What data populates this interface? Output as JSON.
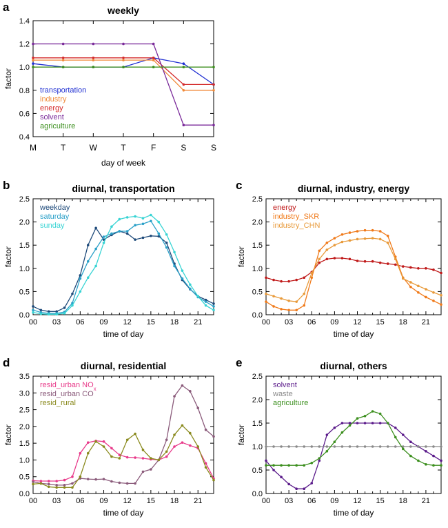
{
  "chart_data": [
    {
      "id": "a",
      "panel_label": "a",
      "type": "line",
      "title": "weekly",
      "xlabel": "day of week",
      "ylabel": "factor",
      "x_tick_labels": [
        "M",
        "T",
        "W",
        "T",
        "F",
        "S",
        "S"
      ],
      "ylim": [
        0.4,
        1.4
      ],
      "y_ticks": [
        "0.4",
        "0.6",
        "0.8",
        "1.0",
        "1.2",
        "1.4"
      ],
      "legend_position": "lower-left",
      "series": [
        {
          "name": "transportation",
          "color": "#1f2fd2",
          "values": [
            1.03,
            1.0,
            1.0,
            1.0,
            1.08,
            1.03,
            0.85
          ]
        },
        {
          "name": "industry",
          "color": "#f08a3a",
          "values": [
            1.06,
            1.06,
            1.06,
            1.06,
            1.06,
            0.8,
            0.8
          ]
        },
        {
          "name": "energy",
          "color": "#d42a2a",
          "values": [
            1.08,
            1.08,
            1.08,
            1.08,
            1.08,
            0.85,
            0.85
          ]
        },
        {
          "name": "solvent",
          "color": "#7a2a9a",
          "values": [
            1.2,
            1.2,
            1.2,
            1.2,
            1.2,
            0.5,
            0.5
          ]
        },
        {
          "name": "agriculture",
          "color": "#3c8f1e",
          "values": [
            1.0,
            1.0,
            1.0,
            1.0,
            1.0,
            1.0,
            1.0
          ]
        }
      ]
    },
    {
      "id": "b",
      "panel_label": "b",
      "type": "line",
      "title": "diurnal, transportation",
      "xlabel": "time of day",
      "ylabel": "factor",
      "xlim": [
        0,
        23
      ],
      "x_ticks": [
        0,
        3,
        6,
        9,
        12,
        15,
        18,
        21
      ],
      "x_tick_labels": [
        "00",
        "03",
        "06",
        "09",
        "12",
        "15",
        "18",
        "21"
      ],
      "ylim": [
        0,
        2.5
      ],
      "y_ticks": [
        "0.0",
        "0.5",
        "1.0",
        "1.5",
        "2.0",
        "2.5"
      ],
      "legend_position": "top-left",
      "series": [
        {
          "name": "weekday",
          "color": "#1e4a7a",
          "values": [
            0.18,
            0.1,
            0.07,
            0.07,
            0.15,
            0.45,
            0.85,
            1.5,
            1.87,
            1.62,
            1.72,
            1.8,
            1.75,
            1.62,
            1.66,
            1.7,
            1.69,
            1.55,
            1.1,
            0.75,
            0.55,
            0.4,
            0.32,
            0.24
          ]
        },
        {
          "name": "saturday",
          "color": "#2aa0c8",
          "values": [
            0.1,
            0.05,
            0.03,
            0.03,
            0.06,
            0.25,
            0.78,
            1.15,
            1.42,
            1.68,
            1.75,
            1.8,
            1.8,
            1.93,
            1.96,
            2.02,
            1.75,
            1.45,
            1.05,
            0.78,
            0.56,
            0.38,
            0.28,
            0.18
          ]
        },
        {
          "name": "sunday",
          "color": "#38d4d4",
          "values": [
            0.05,
            0.02,
            0.01,
            0.01,
            0.03,
            0.2,
            0.5,
            0.8,
            1.05,
            1.55,
            1.9,
            2.06,
            2.1,
            2.12,
            2.08,
            2.15,
            2.0,
            1.73,
            1.35,
            0.95,
            0.65,
            0.4,
            0.2,
            0.1
          ]
        }
      ]
    },
    {
      "id": "c",
      "panel_label": "c",
      "type": "line",
      "title": "diurnal, industry, energy",
      "xlabel": "time of day",
      "ylabel": "factor",
      "xlim": [
        0,
        23
      ],
      "x_ticks": [
        0,
        3,
        6,
        9,
        12,
        15,
        18,
        21
      ],
      "x_tick_labels": [
        "00",
        "03",
        "06",
        "09",
        "12",
        "15",
        "18",
        "21"
      ],
      "ylim": [
        0,
        2.5
      ],
      "y_ticks": [
        "0.0",
        "0.5",
        "1.0",
        "1.5",
        "2.0",
        "2.5"
      ],
      "legend_position": "top-left",
      "series": [
        {
          "name": "energy",
          "color": "#c01a1a",
          "values": [
            0.8,
            0.75,
            0.72,
            0.72,
            0.75,
            0.8,
            0.92,
            1.12,
            1.2,
            1.22,
            1.22,
            1.2,
            1.16,
            1.15,
            1.15,
            1.12,
            1.1,
            1.08,
            1.04,
            1.02,
            1.0,
            1.0,
            0.97,
            0.9
          ]
        },
        {
          "name": "industry_SKR",
          "color": "#f07a1a",
          "values": [
            0.28,
            0.18,
            0.12,
            0.1,
            0.1,
            0.2,
            0.8,
            1.38,
            1.55,
            1.65,
            1.73,
            1.77,
            1.8,
            1.82,
            1.82,
            1.8,
            1.7,
            1.25,
            0.8,
            0.6,
            0.48,
            0.38,
            0.3,
            0.22
          ]
        },
        {
          "name": "industry_CHN",
          "color": "#e89a3a",
          "values": [
            0.45,
            0.4,
            0.35,
            0.3,
            0.28,
            0.45,
            0.9,
            1.2,
            1.4,
            1.5,
            1.57,
            1.6,
            1.63,
            1.64,
            1.65,
            1.63,
            1.55,
            1.2,
            0.78,
            0.7,
            0.62,
            0.55,
            0.48,
            0.42
          ]
        }
      ]
    },
    {
      "id": "d",
      "panel_label": "d",
      "type": "line",
      "title": "diurnal, residential",
      "xlabel": "time of day",
      "ylabel": "factor",
      "xlim": [
        0,
        23
      ],
      "x_ticks": [
        0,
        3,
        6,
        9,
        12,
        15,
        18,
        21
      ],
      "x_tick_labels": [
        "00",
        "03",
        "06",
        "09",
        "12",
        "15",
        "18",
        "21"
      ],
      "ylim": [
        0,
        3.5
      ],
      "y_ticks": [
        "0.0",
        "0.5",
        "1.0",
        "1.5",
        "2.0",
        "2.5",
        "3.0",
        "3.5"
      ],
      "legend_position": "top-left",
      "series": [
        {
          "name": "resid_urban NOx",
          "color": "#e83a8a",
          "values": [
            0.38,
            0.37,
            0.37,
            0.37,
            0.4,
            0.5,
            1.2,
            1.52,
            1.57,
            1.55,
            1.35,
            1.15,
            1.08,
            1.07,
            1.05,
            1.02,
            1.0,
            1.1,
            1.4,
            1.52,
            1.43,
            1.35,
            0.9,
            0.45
          ]
        },
        {
          "name": "resid_urban CO",
          "color": "#8a5a7a",
          "values": [
            0.35,
            0.3,
            0.28,
            0.25,
            0.25,
            0.3,
            0.45,
            0.43,
            0.42,
            0.43,
            0.36,
            0.32,
            0.3,
            0.3,
            0.65,
            0.72,
            1.0,
            1.6,
            2.9,
            3.22,
            3.05,
            2.55,
            1.9,
            1.7
          ]
        },
        {
          "name": "resid_rural",
          "color": "#8a8a1e",
          "values": [
            0.28,
            0.3,
            0.2,
            0.18,
            0.18,
            0.18,
            0.5,
            1.2,
            1.55,
            1.4,
            1.1,
            1.05,
            1.6,
            1.78,
            1.3,
            1.05,
            1.0,
            1.25,
            1.75,
            2.03,
            1.8,
            1.4,
            0.78,
            0.4
          ]
        }
      ]
    },
    {
      "id": "e",
      "panel_label": "e",
      "type": "line",
      "title": "diurnal, others",
      "xlabel": "time of day",
      "ylabel": "factor",
      "xlim": [
        0,
        23
      ],
      "x_ticks": [
        0,
        3,
        6,
        9,
        12,
        15,
        18,
        21
      ],
      "x_tick_labels": [
        "00",
        "03",
        "06",
        "09",
        "12",
        "15",
        "18",
        "21"
      ],
      "ylim": [
        0,
        2.5
      ],
      "y_ticks": [
        "0.0",
        "0.5",
        "1.0",
        "1.5",
        "2.0",
        "2.5"
      ],
      "legend_position": "top-left",
      "series": [
        {
          "name": "solvent",
          "color": "#5a1a8a",
          "values": [
            0.7,
            0.5,
            0.35,
            0.2,
            0.1,
            0.1,
            0.22,
            0.7,
            1.25,
            1.4,
            1.5,
            1.5,
            1.5,
            1.5,
            1.5,
            1.5,
            1.5,
            1.4,
            1.25,
            1.1,
            1.0,
            0.9,
            0.8,
            0.7
          ]
        },
        {
          "name": "waste",
          "color": "#8a8a8a",
          "values": [
            1.0,
            1.0,
            1.0,
            1.0,
            1.0,
            1.0,
            1.0,
            1.0,
            1.0,
            1.0,
            1.0,
            1.0,
            1.0,
            1.0,
            1.0,
            1.0,
            1.0,
            1.0,
            1.0,
            1.0,
            1.0,
            1.0,
            1.0,
            1.0
          ]
        },
        {
          "name": "agriculture",
          "color": "#3c8f1e",
          "values": [
            0.6,
            0.6,
            0.6,
            0.6,
            0.6,
            0.6,
            0.65,
            0.75,
            0.9,
            1.1,
            1.3,
            1.45,
            1.6,
            1.65,
            1.75,
            1.7,
            1.5,
            1.2,
            0.95,
            0.8,
            0.7,
            0.62,
            0.6,
            0.6
          ]
        }
      ]
    }
  ]
}
